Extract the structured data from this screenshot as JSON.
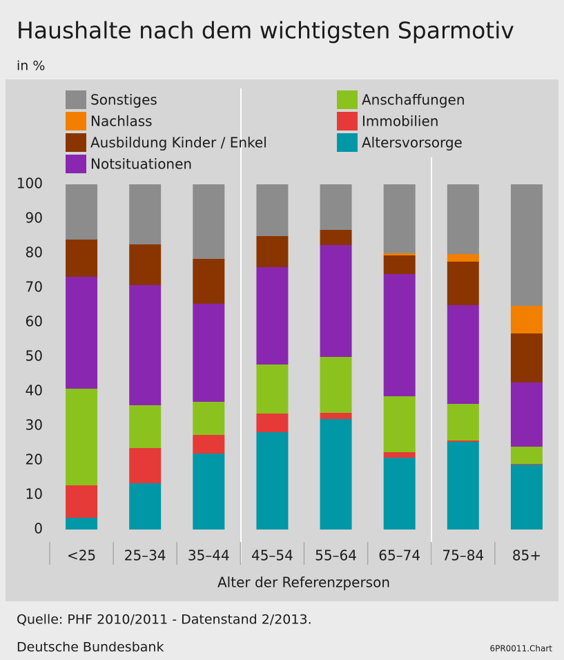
{
  "chart_data": {
    "type": "stacked_bar",
    "title": "Haushalte nach dem wichtigsten Sparmotiv",
    "subtitle": "in %",
    "x_label": "Alter der Referenzperson",
    "source": "Quelle: PHF 2010/2011 - Datenstand 2/2013.",
    "publisher": "Deutsche Bundesbank",
    "code": "6PR0011.Chart",
    "categories": [
      "<25",
      "25–34",
      "35–44",
      "45–54",
      "55–64",
      "65–74",
      "75–84",
      "85+"
    ],
    "series": [
      {
        "name": "Altersvorsorge",
        "color": "#0097a7",
        "values": [
          3.4,
          13.4,
          22,
          28.2,
          32,
          20.8,
          25.4,
          18.8
        ]
      },
      {
        "name": "Immobilien",
        "color": "#e53a37",
        "values": [
          9.4,
          10.2,
          5.4,
          5.4,
          1.8,
          1.6,
          0.4,
          0.2
        ]
      },
      {
        "name": "Anschaffungen",
        "color": "#8cc21e",
        "values": [
          28,
          12.4,
          9.6,
          14.2,
          16.2,
          16.2,
          10.6,
          5
        ]
      },
      {
        "name": "Notsituationen",
        "color": "#8a27b0",
        "values": [
          32.4,
          34.8,
          28.4,
          28.2,
          32.4,
          35.4,
          28.6,
          18.6
        ]
      },
      {
        "name": "Ausbildung Kinder / Enkel",
        "color": "#8a3500",
        "values": [
          10.8,
          11.8,
          13,
          9,
          4.4,
          5.4,
          12.6,
          14.2
        ]
      },
      {
        "name": "Nachlass",
        "color": "#f27f00",
        "values": [
          0,
          0,
          0,
          0,
          0,
          0.6,
          2.2,
          8
        ]
      },
      {
        "name": "Sonstiges",
        "color": "#8c8c8c",
        "values": [
          16,
          17.4,
          21.6,
          15,
          13.2,
          20,
          20.2,
          35.2
        ]
      }
    ],
    "ylim": [
      0,
      100
    ],
    "yticks": [
      0,
      10,
      20,
      30,
      40,
      50,
      60,
      70,
      80,
      90,
      100
    ],
    "grid": false
  }
}
